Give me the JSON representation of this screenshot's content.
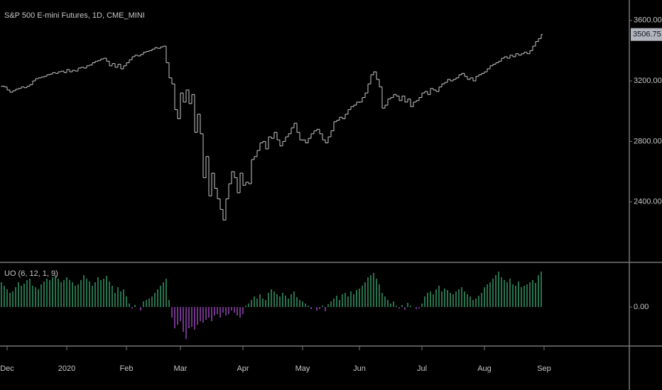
{
  "chart_data": [
    {
      "type": "ohlc",
      "title": "S&P 500 E-mini Futures, 1D, CME_MINI",
      "color": "#c8c8c8",
      "last_color": "#b2b5be",
      "ylim": [
        2000,
        3735
      ],
      "yticks": [
        {
          "value": 2400,
          "label": "2400.00"
        },
        {
          "value": 2800,
          "label": "2800.00"
        },
        {
          "value": 3200,
          "label": "3200.00"
        },
        {
          "value": 3600,
          "label": "3600.00"
        }
      ],
      "groups": [
        {
          "label": null,
          "values": [
            3165,
            3160
          ]
        },
        {
          "label": "Dec",
          "values": [
            3140,
            3125,
            3135,
            3145,
            3150,
            3160,
            3155,
            3165,
            3175,
            3200,
            3215,
            3220,
            3225,
            3230,
            3240,
            3245,
            3255,
            3250,
            3260,
            3265,
            3255
          ]
        },
        {
          "label": "2020",
          "values": [
            3275,
            3260,
            3270,
            3265,
            3285,
            3290,
            3285,
            3300,
            3305,
            3320,
            3330,
            3335,
            3345,
            3350,
            3330,
            3300,
            3315,
            3290,
            3310,
            3280,
            3300
          ]
        },
        {
          "label": "Feb",
          "values": [
            3320,
            3340,
            3360,
            3370,
            3365,
            3375,
            3390,
            3395,
            3400,
            3410,
            3420,
            3415,
            3425,
            3430,
            3320,
            3220,
            3180,
            3010,
            2950
          ]
        },
        {
          "label": "Mar",
          "values": [
            3120,
            3060,
            3140,
            3050,
            3110,
            2860,
            2980,
            2850,
            2560,
            2700,
            2440,
            2590,
            2490,
            2420,
            2350,
            2280,
            2420,
            2520,
            2600,
            2560,
            2460,
            2590
          ]
        },
        {
          "label": "Apr",
          "values": [
            2510,
            2530,
            2520,
            2680,
            2700,
            2740,
            2790,
            2800,
            2750,
            2830,
            2820,
            2860,
            2810,
            2770,
            2800,
            2830,
            2850,
            2890,
            2920,
            2860,
            2810
          ]
        },
        {
          "label": "May",
          "values": [
            2810,
            2790,
            2820,
            2850,
            2870,
            2880,
            2850,
            2810,
            2790,
            2830,
            2870,
            2930,
            2940,
            2960,
            2950,
            2980,
            3010,
            3030,
            3040,
            3060
          ]
        },
        {
          "label": "Jun",
          "values": [
            3060,
            3090,
            3120,
            3180,
            3240,
            3260,
            3210,
            3160,
            3020,
            3040,
            3080,
            3090,
            3110,
            3100,
            3070,
            3100,
            3060,
            3080,
            3030,
            3060,
            3070,
            3090
          ]
        },
        {
          "label": "Jul",
          "values": [
            3120,
            3130,
            3110,
            3150,
            3140,
            3130,
            3160,
            3180,
            3190,
            3210,
            3200,
            3210,
            3220,
            3240,
            3250,
            3230,
            3210,
            3220,
            3200,
            3230,
            3240,
            3250
          ]
        },
        {
          "label": "Aug",
          "values": [
            3260,
            3280,
            3300,
            3310,
            3320,
            3330,
            3350,
            3360,
            3350,
            3370,
            3360,
            3380,
            3370,
            3380,
            3390,
            3380,
            3400,
            3430,
            3460,
            3480,
            3506.75
          ]
        }
      ],
      "x_end_label": "Sep"
    },
    {
      "type": "histogram",
      "title": "UO (6, 12, 1, 9)",
      "color_up": "#3fae77",
      "color_down": "#b04fd6",
      "ylim": [
        -55,
        61
      ],
      "yticks": [
        {
          "value": 0,
          "label": "0.00"
        }
      ],
      "groups": [
        {
          "values": [
            35,
            30
          ]
        },
        {
          "values": [
            25,
            20,
            22,
            28,
            35,
            30,
            33,
            38,
            40,
            30,
            28,
            25,
            32,
            36,
            40,
            38,
            42,
            45,
            40,
            35,
            38
          ]
        },
        {
          "values": [
            42,
            38,
            35,
            30,
            32,
            38,
            45,
            40,
            36,
            30,
            35,
            42,
            38,
            40,
            44,
            36,
            30,
            20,
            28,
            22,
            25
          ]
        },
        {
          "values": [
            15,
            5,
            -2,
            3,
            0,
            -5,
            8,
            10,
            12,
            15,
            20,
            25,
            30,
            35,
            40,
            10,
            -15,
            -30,
            -25
          ]
        },
        {
          "values": [
            -20,
            -35,
            -45,
            -30,
            -28,
            -32,
            -25,
            -20,
            -22,
            -18,
            -15,
            -20,
            -12,
            -10,
            -15,
            -8,
            -12,
            -10,
            -5,
            -8,
            -12,
            -15
          ]
        },
        {
          "values": [
            -10,
            2,
            5,
            10,
            15,
            12,
            18,
            12,
            10,
            20,
            25,
            22,
            18,
            15,
            20,
            16,
            12,
            18,
            22,
            14,
            10
          ]
        },
        {
          "values": [
            8,
            5,
            2,
            -3,
            0,
            -5,
            -3,
            2,
            -6,
            4,
            8,
            12,
            16,
            10,
            18,
            20,
            15,
            22,
            18,
            24
          ]
        },
        {
          "values": [
            26,
            30,
            35,
            42,
            45,
            48,
            40,
            32,
            20,
            15,
            10,
            5,
            8,
            2,
            -2,
            3,
            -4,
            6,
            2,
            0,
            -3,
            -2
          ]
        },
        {
          "values": [
            5,
            15,
            20,
            22,
            18,
            25,
            30,
            22,
            26,
            24,
            20,
            18,
            22,
            25,
            28,
            22,
            18,
            15,
            10,
            12,
            16,
            20
          ]
        },
        {
          "values": [
            28,
            32,
            35,
            40,
            45,
            50,
            42,
            38,
            35,
            40,
            32,
            30,
            36,
            28,
            30,
            32,
            35,
            38,
            34,
            45,
            50
          ]
        }
      ]
    }
  ]
}
